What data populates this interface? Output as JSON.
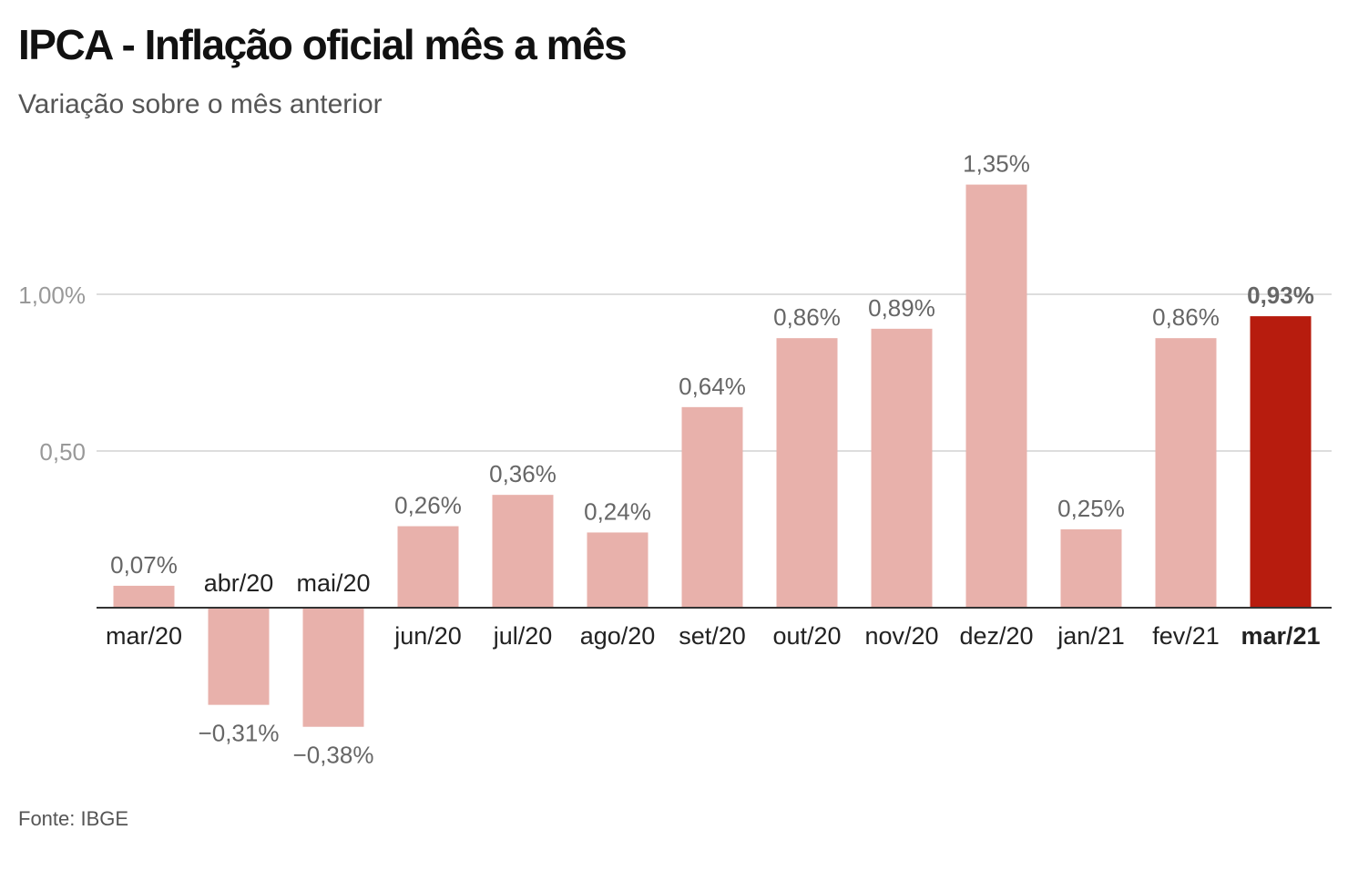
{
  "title": "IPCA - Inflação oficial mês a mês",
  "subtitle": "Variação sobre o mês anterior",
  "source": "Fonte: IBGE",
  "colors": {
    "bar": "#e8b1ab",
    "highlight": "#b71c0e",
    "grid": "#dddddd",
    "axis": "#333333",
    "label": "#666666",
    "tick": "#999999"
  },
  "chart_data": {
    "type": "bar",
    "categories": [
      "mar/20",
      "abr/20",
      "mai/20",
      "jun/20",
      "jul/20",
      "ago/20",
      "set/20",
      "out/20",
      "nov/20",
      "dez/20",
      "jan/21",
      "fev/21",
      "mar/21"
    ],
    "values": [
      0.07,
      -0.31,
      -0.38,
      0.26,
      0.36,
      0.24,
      0.64,
      0.86,
      0.89,
      1.35,
      0.25,
      0.86,
      0.93
    ],
    "data_labels": [
      "0,07%",
      "−0,31%",
      "−0,38%",
      "0,26%",
      "0,36%",
      "0,24%",
      "0,64%",
      "0,86%",
      "0,89%",
      "1,35%",
      "0,25%",
      "0,86%",
      "0,93%"
    ],
    "highlight": "mar/21",
    "y_ticks": [
      0.5,
      1.0
    ],
    "y_tick_labels": [
      "0,50",
      "1,00%"
    ],
    "ylim": [
      -0.58,
      1.5
    ],
    "grid": true,
    "xlabel": "",
    "ylabel": ""
  }
}
